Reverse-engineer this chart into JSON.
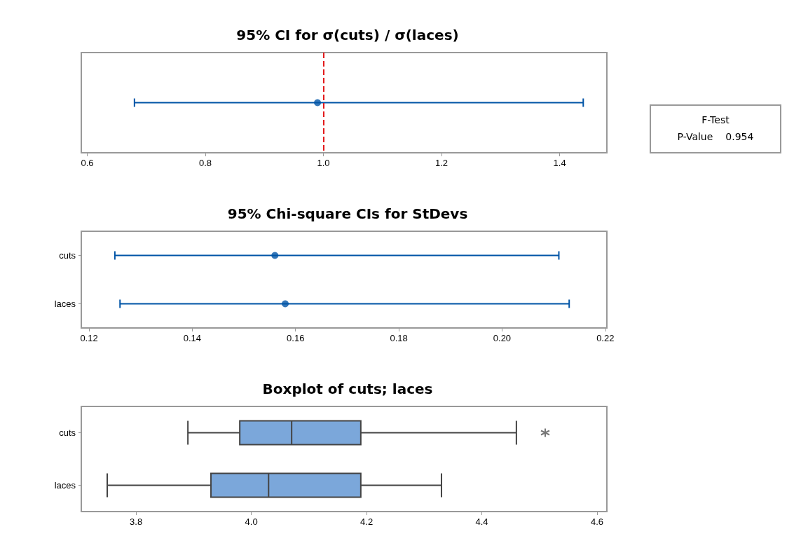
{
  "chart_data": [
    {
      "type": "scatter",
      "title": "95% CI for σ(cuts) / σ(laces)",
      "orientation": "horizontal",
      "categories": [
        null
      ],
      "tick_labels": "x",
      "marker": "circle",
      "series": [
        {
          "color": "#0054a6",
          "values": [
            0.99
          ],
          "errors": [
            [
              0.68,
              1.44
            ]
          ]
        }
      ],
      "xlim": [
        0.59,
        1.48
      ],
      "xticks": [
        0.6,
        0.8,
        {
          "value": 1,
          "label": "1.0"
        },
        1.2,
        1.4
      ],
      "ref_lines": [
        {
          "axis": "x",
          "value": 1.0,
          "color": "#e31a1c",
          "line_style": "dashed"
        }
      ]
    },
    {
      "type": "other",
      "title": "F-Test",
      "annotations": [
        "P-Value",
        "0.954"
      ]
    },
    {
      "type": "scatter",
      "title": "95% Chi-square CIs for StDevs",
      "orientation": "horizontal",
      "categories": [
        "cuts",
        "laces"
      ],
      "marker": "circle",
      "series": [
        {
          "color": "#0054a6",
          "values": [
            0.156,
            0.158
          ],
          "errors": [
            [
              0.125,
              0.211
            ],
            [
              0.126,
              0.213
            ]
          ]
        }
      ],
      "xlim": [
        0.1185,
        0.2203
      ],
      "xticks": [
        0.12,
        0.14,
        0.16,
        0.18,
        {
          "value": 0.2,
          "label": "0.20"
        },
        0.22
      ]
    },
    {
      "type": "box",
      "title": "Boxplot of cuts; laces",
      "orientation": "horizontal",
      "categories": [
        "cuts",
        "laces"
      ],
      "marker": "star",
      "series": [
        {
          "color": "#7ba7da",
          "boxes": [
            {
              "low": 3.89,
              "q1": 3.98,
              "median": 4.07,
              "q3": 4.19,
              "high": 4.46,
              "outliers": [
                4.51
              ]
            },
            {
              "low": 3.75,
              "q1": 3.93,
              "median": 4.03,
              "q3": 4.19,
              "high": 4.33
            }
          ]
        }
      ],
      "xlim": [
        3.705,
        4.617
      ],
      "xticks": [
        3.8,
        {
          "value": 4,
          "label": "4.0"
        },
        4.2,
        4.4,
        4.6
      ]
    }
  ]
}
